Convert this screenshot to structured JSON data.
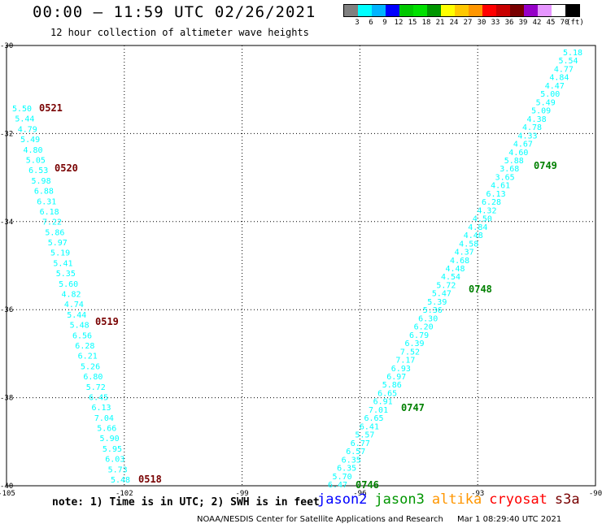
{
  "header": {
    "title": "00:00 – 11:59 UTC 02/26/2021",
    "subtitle": "12 hour collection of altimeter wave heights"
  },
  "legend": {
    "colors": [
      "#808080",
      "#00ffff",
      "#00b4ff",
      "#0000ff",
      "#00c800",
      "#00e100",
      "#009600",
      "#ffff00",
      "#ffc800",
      "#ff9600",
      "#ff0000",
      "#c80000",
      "#780000",
      "#9600c8",
      "#e696ff",
      "#ffffff",
      "#000000"
    ],
    "labels": [
      "3",
      "6",
      "9",
      "12",
      "15",
      "18",
      "21",
      "24",
      "27",
      "30",
      "33",
      "36",
      "39",
      "42",
      "45",
      "70",
      "(ft)"
    ]
  },
  "axes": {
    "lon_ticks": [
      "-105",
      "-102",
      "-99",
      "-96",
      "-93",
      "-90"
    ],
    "lat_ticks": [
      "-30",
      "-32",
      "-34",
      "-36",
      "-38",
      "-40"
    ]
  },
  "tracks": {
    "west": {
      "color": "#00ffff",
      "values": [
        "5.50",
        "5.44",
        "4.79",
        "5.49",
        "4.80",
        "5.05",
        "6.53",
        "5.98",
        "6.88",
        "6.31",
        "6.18",
        "7.22",
        "5.86",
        "5.97",
        "5.19",
        "5.41",
        "5.35",
        "5.60",
        "4.82",
        "4.74",
        "5.44",
        "5.48",
        "6.56",
        "6.28",
        "6.21",
        "5.26",
        "6.80",
        "5.72",
        "6.45",
        "6.13",
        "7.04",
        "5.66",
        "5.90",
        "5.95",
        "6.03",
        "5.73",
        "5.48"
      ],
      "times": [
        "0521",
        "0520",
        "0519",
        "0518"
      ],
      "time_color": "#780000"
    },
    "east": {
      "color": "#00ffff",
      "values": [
        "5.18",
        "5.54",
        "4.77",
        "4.84",
        "4.47",
        "5.00",
        "5.49",
        "5.09",
        "4.38",
        "4.78",
        "4.33",
        "4.67",
        "4.60",
        "5.88",
        "3.68",
        "3.65",
        "4.61",
        "6.13",
        "6.28",
        "4.32",
        "4.50",
        "4.84",
        "4.48",
        "4.58",
        "4.37",
        "4.68",
        "4.48",
        "4.54",
        "5.72",
        "5.47",
        "5.39",
        "5.36",
        "6.30",
        "6.20",
        "6.79",
        "6.39",
        "7.52",
        "7.17",
        "6.93",
        "6.97",
        "5.86",
        "6.65",
        "6.91",
        "7.01",
        "6.65",
        "6.41",
        "5.57",
        "6.77",
        "6.57",
        "6.35",
        "6.35",
        "5.70",
        "6.47"
      ],
      "times": [
        "0749",
        "0748",
        "0747",
        "0746"
      ],
      "time_color": "#008000"
    }
  },
  "note": "note: 1) Time is in UTC; 2) SWH is in feet",
  "satellites": [
    {
      "name": "jason2",
      "color": "#0000ff"
    },
    {
      "name": "jason3",
      "color": "#009600"
    },
    {
      "name": "altika",
      "color": "#ff9600"
    },
    {
      "name": "cryosat",
      "color": "#ff0000"
    },
    {
      "name": "s3a",
      "color": "#780000"
    }
  ],
  "footer": {
    "source": "NOAA/NESDIS Center for Satellite Applications and Research",
    "timestamp": "Mar  1 08:29:40 UTC 2021"
  }
}
